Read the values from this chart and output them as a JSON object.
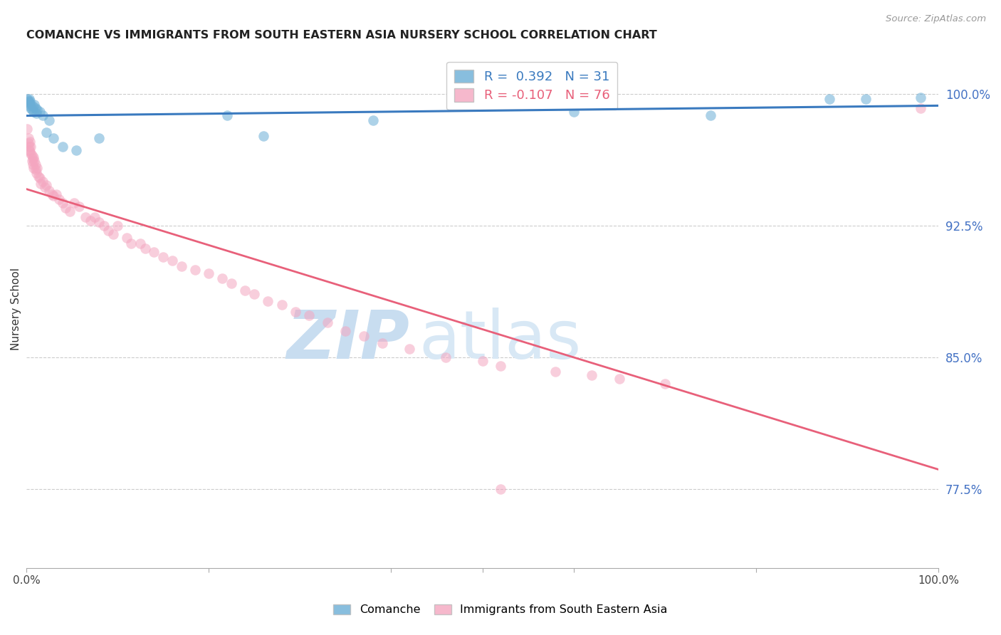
{
  "title": "COMANCHE VS IMMIGRANTS FROM SOUTH EASTERN ASIA NURSERY SCHOOL CORRELATION CHART",
  "source": "Source: ZipAtlas.com",
  "ylabel": "Nursery School",
  "ytick_labels": [
    "100.0%",
    "92.5%",
    "85.0%",
    "77.5%"
  ],
  "ytick_values": [
    1.0,
    0.925,
    0.85,
    0.775
  ],
  "xrange": [
    0.0,
    1.0
  ],
  "yrange": [
    0.73,
    1.025
  ],
  "blue_R": 0.392,
  "blue_N": 31,
  "pink_R": -0.107,
  "pink_N": 76,
  "blue_color": "#6baed6",
  "pink_color": "#f4a6c0",
  "blue_line_color": "#3a7abf",
  "pink_line_color": "#e8607a",
  "grid_color": "#cccccc",
  "watermark_zip_color": "#c8ddf0",
  "watermark_atlas_color": "#c8ddf0",
  "blue_x": [
    0.001,
    0.002,
    0.003,
    0.003,
    0.004,
    0.004,
    0.005,
    0.005,
    0.006,
    0.007,
    0.008,
    0.009,
    0.01,
    0.011,
    0.012,
    0.015,
    0.018,
    0.022,
    0.025,
    0.03,
    0.04,
    0.055,
    0.08,
    0.22,
    0.26,
    0.38,
    0.6,
    0.75,
    0.88,
    0.92,
    0.98
  ],
  "blue_y": [
    0.997,
    0.996,
    0.997,
    0.995,
    0.993,
    0.996,
    0.994,
    0.992,
    0.991,
    0.993,
    0.99,
    0.994,
    0.992,
    0.989,
    0.991,
    0.99,
    0.988,
    0.978,
    0.985,
    0.975,
    0.97,
    0.968,
    0.975,
    0.988,
    0.976,
    0.985,
    0.99,
    0.988,
    0.997,
    0.997,
    0.998
  ],
  "pink_x": [
    0.001,
    0.002,
    0.002,
    0.003,
    0.003,
    0.004,
    0.004,
    0.005,
    0.005,
    0.006,
    0.006,
    0.007,
    0.007,
    0.008,
    0.008,
    0.009,
    0.01,
    0.01,
    0.011,
    0.012,
    0.013,
    0.015,
    0.016,
    0.018,
    0.02,
    0.022,
    0.025,
    0.028,
    0.03,
    0.033,
    0.036,
    0.04,
    0.043,
    0.048,
    0.052,
    0.058,
    0.065,
    0.07,
    0.075,
    0.08,
    0.085,
    0.09,
    0.095,
    0.1,
    0.11,
    0.115,
    0.125,
    0.13,
    0.14,
    0.15,
    0.16,
    0.17,
    0.185,
    0.2,
    0.215,
    0.225,
    0.24,
    0.25,
    0.265,
    0.28,
    0.295,
    0.31,
    0.33,
    0.35,
    0.37,
    0.39,
    0.42,
    0.46,
    0.5,
    0.52,
    0.58,
    0.62,
    0.65,
    0.52,
    0.7,
    0.98
  ],
  "pink_y": [
    0.98,
    0.975,
    0.972,
    0.97,
    0.968,
    0.973,
    0.967,
    0.97,
    0.966,
    0.965,
    0.962,
    0.963,
    0.96,
    0.964,
    0.958,
    0.962,
    0.96,
    0.957,
    0.955,
    0.958,
    0.953,
    0.952,
    0.949,
    0.95,
    0.947,
    0.948,
    0.945,
    0.943,
    0.942,
    0.943,
    0.94,
    0.938,
    0.935,
    0.933,
    0.938,
    0.936,
    0.93,
    0.928,
    0.93,
    0.927,
    0.925,
    0.922,
    0.92,
    0.925,
    0.918,
    0.915,
    0.915,
    0.912,
    0.91,
    0.907,
    0.905,
    0.902,
    0.9,
    0.898,
    0.895,
    0.892,
    0.888,
    0.886,
    0.882,
    0.88,
    0.876,
    0.874,
    0.87,
    0.865,
    0.862,
    0.858,
    0.855,
    0.85,
    0.848,
    0.845,
    0.842,
    0.84,
    0.838,
    0.775,
    0.835,
    0.992
  ]
}
